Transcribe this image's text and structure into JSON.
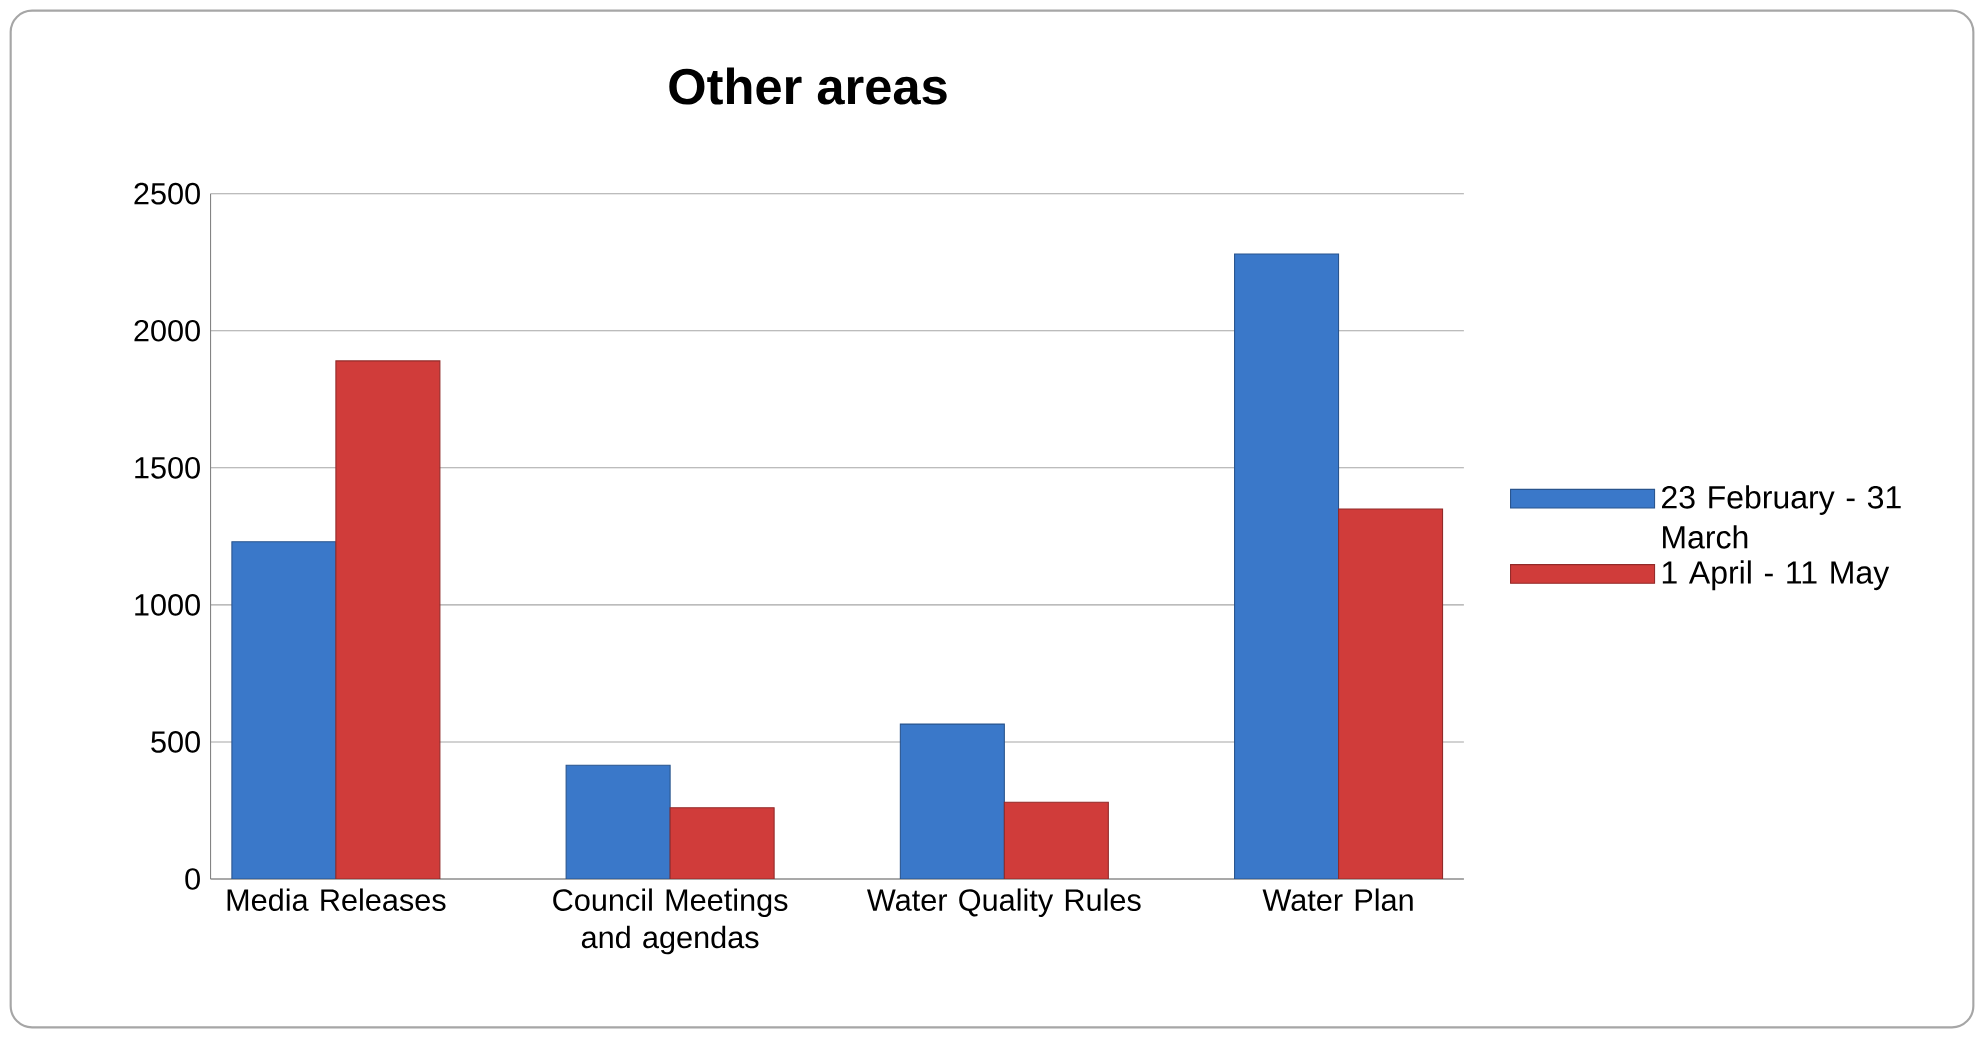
{
  "chart_data": {
    "type": "bar",
    "title": "Other areas",
    "categories": [
      "Media Releases",
      "Council Meetings and agendas",
      "Water Quality Rules",
      "Water Plan"
    ],
    "series": [
      {
        "name": "23 February - 31 March",
        "color": "#3a78c9",
        "values": [
          1230,
          415,
          565,
          2280
        ]
      },
      {
        "name": "1 April - 11 May",
        "color": "#d03c3a",
        "values": [
          1890,
          260,
          280,
          1350
        ]
      }
    ],
    "ylim": [
      0,
      2500
    ],
    "yticks": [
      0,
      500,
      1000,
      1500,
      2000,
      2500
    ],
    "grid": "y",
    "legend": "right"
  }
}
